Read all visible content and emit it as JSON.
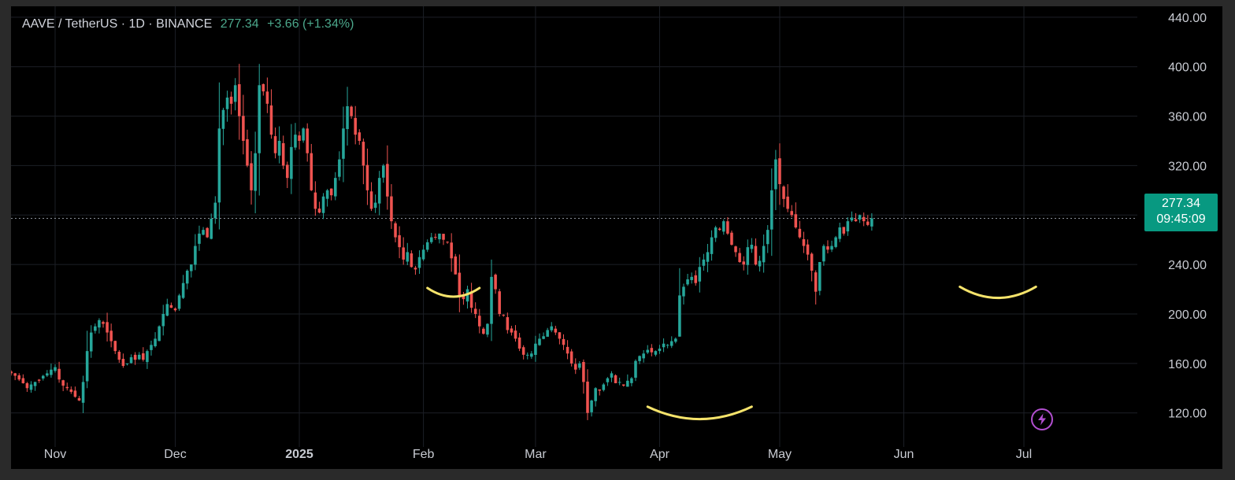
{
  "header": {
    "symbol": "AAVE / TetherUS · 1D · BINANCE",
    "last": "277.34",
    "change": "+3.66 (+1.34%)"
  },
  "price_tag": {
    "price": "277.34",
    "countdown": "09:45:09"
  },
  "colors": {
    "up": "#26a69a",
    "down": "#ef5350",
    "annotation": "#f5e36b",
    "background": "#000000",
    "tag": "#089981"
  },
  "icons": {
    "bottom": "lightning-icon"
  },
  "chart_data": {
    "type": "candlestick",
    "interval": "1D",
    "ylim": [
      95,
      445
    ],
    "yticks": [
      120,
      160,
      200,
      240,
      280,
      320,
      360,
      400,
      440
    ],
    "ytick_labels": [
      "120.00",
      "160.00",
      "200.00",
      "240.00",
      "",
      "320.00",
      "360.00",
      "400.00",
      "440.00"
    ],
    "xtick_labels": [
      {
        "label": "Nov",
        "date": "2024-11-01"
      },
      {
        "label": "Dec",
        "date": "2024-12-01"
      },
      {
        "label": "2025",
        "date": "2025-01-01",
        "bold": true
      },
      {
        "label": "Feb",
        "date": "2025-02-01"
      },
      {
        "label": "Mar",
        "date": "2025-03-01"
      },
      {
        "label": "Apr",
        "date": "2025-04-01"
      },
      {
        "label": "May",
        "date": "2025-05-01"
      },
      {
        "label": "Jun",
        "date": "2025-06-01"
      },
      {
        "label": "Jul",
        "date": "2025-07-01"
      }
    ],
    "start_date": "2024-10-20",
    "last_price": 277.34,
    "closes": [
      155,
      152,
      150,
      147,
      144,
      140,
      143,
      145,
      146,
      150,
      152,
      155,
      157,
      147,
      142,
      140,
      137,
      133,
      130,
      145,
      170,
      185,
      190,
      195,
      192,
      185,
      178,
      170,
      163,
      158,
      160,
      165,
      163,
      167,
      163,
      170,
      175,
      180,
      190,
      200,
      208,
      205,
      203,
      215,
      225,
      235,
      240,
      255,
      265,
      268,
      262,
      277,
      290,
      350,
      365,
      375,
      370,
      385,
      360,
      340,
      320,
      300,
      330,
      385,
      380,
      370,
      345,
      330,
      340,
      320,
      310,
      335,
      345,
      340,
      350,
      330,
      300,
      285,
      282,
      295,
      300,
      296,
      310,
      325,
      350,
      368,
      360,
      345,
      340,
      320,
      300,
      285,
      290,
      310,
      320,
      295,
      275,
      262,
      254,
      244,
      250,
      238,
      236,
      246,
      252,
      258,
      262,
      262,
      265,
      260,
      258,
      245,
      232,
      214,
      212,
      220,
      205,
      200,
      190,
      184,
      192,
      230,
      220,
      200,
      199,
      187,
      185,
      180,
      172,
      167,
      167,
      168,
      176,
      180,
      182,
      187,
      190,
      185,
      180,
      175,
      168,
      160,
      155,
      160,
      145,
      120,
      130,
      140,
      138,
      143,
      148,
      152,
      144,
      145,
      142,
      146,
      148,
      162,
      166,
      168,
      171,
      169,
      170,
      172,
      176,
      175,
      178,
      180,
      215,
      222,
      228,
      230,
      225,
      238,
      244,
      250,
      262,
      270,
      268,
      275,
      265,
      256,
      250,
      242,
      240,
      254,
      256,
      240,
      243,
      255,
      268,
      300,
      325,
      305,
      293,
      285,
      280,
      270,
      262,
      255,
      248,
      235,
      218,
      242,
      255,
      252,
      255,
      262,
      270,
      265,
      275,
      278,
      275,
      280,
      275,
      272,
      277.34
    ],
    "annotations": [
      {
        "type": "arc",
        "from": "2025-02-02",
        "to": "2025-02-15",
        "price": 221,
        "depth": 7
      },
      {
        "type": "arc",
        "from": "2025-03-29",
        "to": "2025-04-24",
        "price": 125,
        "depth": 10
      },
      {
        "type": "arc",
        "from": "2025-06-15",
        "to": "2025-07-04",
        "price": 222,
        "depth": 9
      }
    ]
  }
}
